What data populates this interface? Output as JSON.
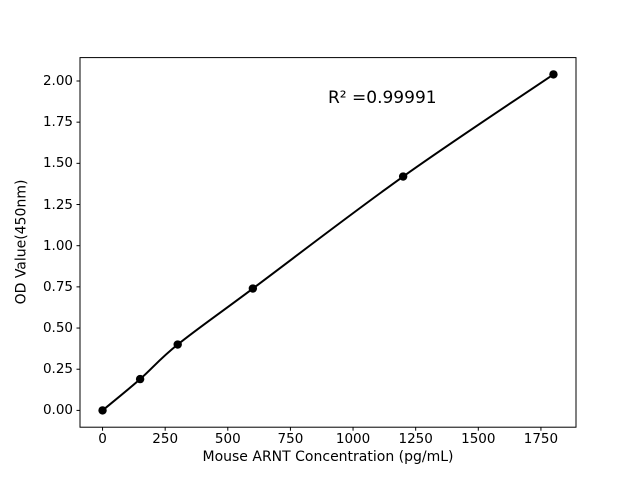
{
  "chart_data": {
    "type": "line",
    "title": "",
    "xlabel": "Mouse ARNT Concentration (pg/mL)",
    "ylabel": "OD Value(450nm)",
    "x": [
      0,
      150,
      300,
      600,
      1200,
      1800
    ],
    "y": [
      0.0,
      0.19,
      0.4,
      0.74,
      1.42,
      2.04
    ],
    "r_squared": 0.99991,
    "annotation": {
      "text": "R² =0.99991",
      "x": 900,
      "y": 1.86
    },
    "xlim": [
      -90,
      1890
    ],
    "ylim": [
      -0.102,
      2.142
    ],
    "xticks": [
      0,
      250,
      500,
      750,
      1000,
      1250,
      1500,
      1750
    ],
    "xtick_labels": [
      "0",
      "250",
      "500",
      "750",
      "1000",
      "1250",
      "1500",
      "1750"
    ],
    "yticks": [
      0.0,
      0.25,
      0.5,
      0.75,
      1.0,
      1.25,
      1.5,
      1.75,
      2.0
    ],
    "ytick_labels": [
      "0.00",
      "0.25",
      "0.50",
      "0.75",
      "1.00",
      "1.25",
      "1.50",
      "1.75",
      "2.00"
    ],
    "grid": false,
    "legend": "none",
    "line_color": "#000000",
    "marker_color": "#000000",
    "background_color": "#ffffff"
  }
}
